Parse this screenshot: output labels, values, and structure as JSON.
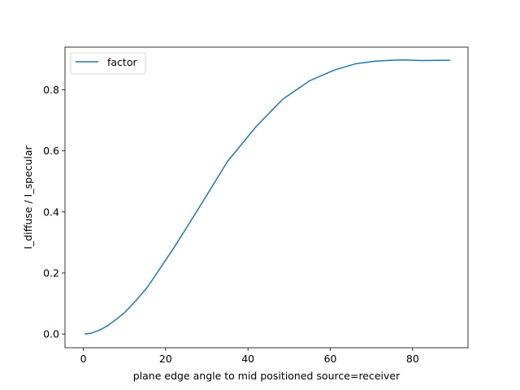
{
  "chart_data": {
    "type": "line",
    "xlabel": "plane edge angle to mid positioned source=receiver",
    "ylabel": "I_diffuse / I_specular",
    "xlim": [
      -4.45,
      93.45
    ],
    "ylim": [
      -0.045,
      0.94
    ],
    "xticks": [
      0,
      20,
      40,
      60,
      80
    ],
    "yticks": [
      0.0,
      0.2,
      0.4,
      0.6,
      0.8
    ],
    "xtick_labels": [
      "0",
      "20",
      "40",
      "60",
      "80"
    ],
    "ytick_labels": [
      "0.0",
      "0.2",
      "0.4",
      "0.6",
      "0.8"
    ],
    "grid": false,
    "legend": "top-left",
    "series": [
      {
        "name": "factor",
        "color": "#1f77b4",
        "x": [
          0.5,
          2,
          4,
          6,
          8,
          10,
          12.5,
          15.5,
          19,
          22.5,
          26,
          30,
          35,
          42,
          48.5,
          55,
          61,
          66,
          71,
          75,
          78,
          82,
          89
        ],
        "y": [
          0.0,
          0.003,
          0.013,
          0.028,
          0.048,
          0.07,
          0.105,
          0.152,
          0.222,
          0.293,
          0.368,
          0.455,
          0.565,
          0.68,
          0.77,
          0.83,
          0.865,
          0.885,
          0.894,
          0.897,
          0.898,
          0.896,
          0.897
        ]
      }
    ]
  }
}
